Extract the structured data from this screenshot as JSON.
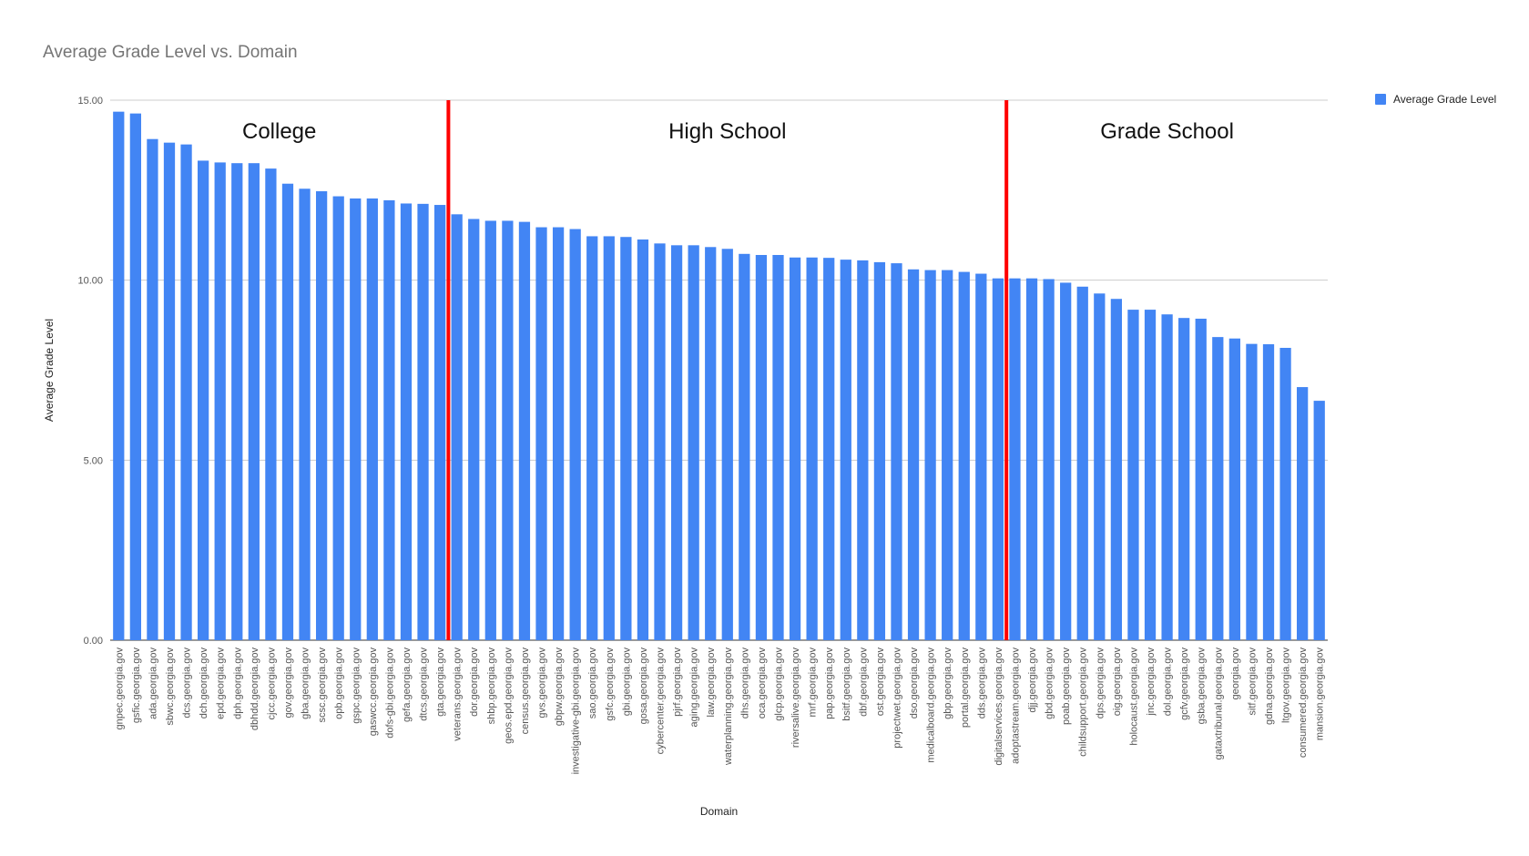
{
  "chart_data": {
    "type": "bar",
    "title": "Average Grade Level vs. Domain",
    "xlabel": "Domain",
    "ylabel": "Average Grade Level",
    "ylim": [
      0,
      15
    ],
    "yticks": [
      "0.00",
      "5.00",
      "10.00",
      "15.00"
    ],
    "grid": true,
    "legend_position": "top-right",
    "bar_color": "#4285f4",
    "divider_color": "#ff0000",
    "series": [
      {
        "name": "Average Grade Level"
      }
    ],
    "categories": [
      "gnpec.georgia.gov",
      "gsfic.georgia.gov",
      "ada.georgia.gov",
      "sbwc.georgia.gov",
      "dcs.georgia.gov",
      "dch.georgia.gov",
      "epd.georgia.gov",
      "dph.georgia.gov",
      "dbhdd.georgia.gov",
      "cjcc.georgia.gov",
      "gov.georgia.gov",
      "gba.georgia.gov",
      "scsc.georgia.gov",
      "opb.georgia.gov",
      "gspc.georgia.gov",
      "gaswcc.georgia.gov",
      "dofs-gbi.georgia.gov",
      "gefa.georgia.gov",
      "dtcs.georgia.gov",
      "gta.georgia.gov",
      "veterans.georgia.gov",
      "dor.georgia.gov",
      "shbp.georgia.gov",
      "geos.epd.georgia.gov",
      "census.georgia.gov",
      "gvs.georgia.gov",
      "gbpw.georgia.gov",
      "investigative-gbi.georgia.gov",
      "sao.georgia.gov",
      "gsfc.georgia.gov",
      "gbi.georgia.gov",
      "gosa.georgia.gov",
      "cybercenter.georgia.gov",
      "pjrf.georgia.gov",
      "aging.georgia.gov",
      "law.georgia.gov",
      "waterplanning.georgia.gov",
      "dhs.georgia.gov",
      "oca.georgia.gov",
      "glcp.georgia.gov",
      "riversalive.georgia.gov",
      "mrf.georgia.gov",
      "pap.georgia.gov",
      "bsitf.georgia.gov",
      "dbf.georgia.gov",
      "ost.georgia.gov",
      "projectwet.georgia.gov",
      "dso.georgia.gov",
      "medicalboard.georgia.gov",
      "gbp.georgia.gov",
      "portal.georgia.gov",
      "dds.georgia.gov",
      "digitalservices.georgia.gov",
      "adoptastream.georgia.gov",
      "djj.georgia.gov",
      "gbd.georgia.gov",
      "poab.georgia.gov",
      "childsupport.georgia.gov",
      "dps.georgia.gov",
      "oig.georgia.gov",
      "holocaust.georgia.gov",
      "jnc.georgia.gov",
      "dol.georgia.gov",
      "gcfv.georgia.gov",
      "gsba.georgia.gov",
      "gataxtribunal.georgia.gov",
      "georgia.gov",
      "sitf.georgia.gov",
      "gdna.georgia.gov",
      "ltgov.georgia.gov",
      "consumered.georgia.gov",
      "mansion.georgia.gov"
    ],
    "values": [
      14.68,
      14.63,
      13.92,
      13.82,
      13.77,
      13.32,
      13.27,
      13.25,
      13.25,
      13.1,
      12.68,
      12.54,
      12.47,
      12.33,
      12.27,
      12.27,
      12.22,
      12.13,
      12.12,
      12.09,
      11.83,
      11.7,
      11.65,
      11.65,
      11.62,
      11.47,
      11.47,
      11.42,
      11.22,
      11.22,
      11.2,
      11.13,
      11.02,
      10.97,
      10.97,
      10.92,
      10.87,
      10.73,
      10.7,
      10.7,
      10.63,
      10.63,
      10.62,
      10.57,
      10.55,
      10.5,
      10.47,
      10.3,
      10.28,
      10.28,
      10.23,
      10.18,
      10.05,
      10.05,
      10.05,
      10.03,
      9.93,
      9.82,
      9.63,
      9.48,
      9.18,
      9.18,
      9.05,
      8.95,
      8.93,
      8.42,
      8.38,
      8.23,
      8.22,
      8.12,
      7.03,
      6.65
    ],
    "annotations": [
      {
        "text": "College",
        "after_category_index": 19
      },
      {
        "text": "High School",
        "after_category_index": 52
      },
      {
        "text": "Grade School"
      }
    ]
  }
}
